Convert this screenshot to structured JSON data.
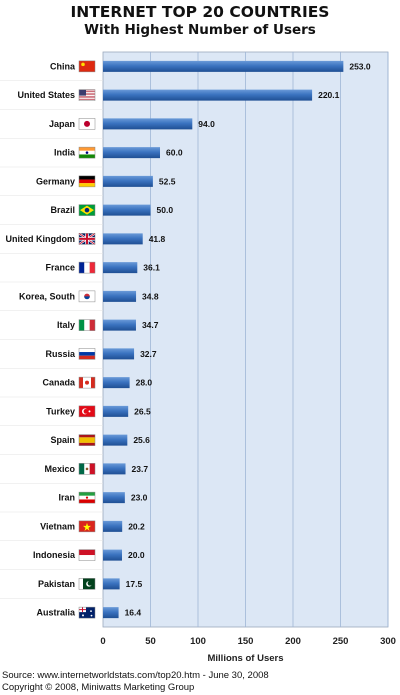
{
  "header": {
    "title": "INTERNET TOP 20 COUNTRIES",
    "subtitle": "With Highest Number of Users"
  },
  "footer": {
    "source": "Source: www.internetworldstats.com/top20.htm - June 30, 2008",
    "copyright": "Copyright © 2008, Miniwatts Marketing Group"
  },
  "chart_data": {
    "type": "bar",
    "orientation": "horizontal",
    "title": "INTERNET TOP 20 COUNTRIES",
    "subtitle": "With Highest Number of Users",
    "xlabel": "Millions of Users",
    "ylabel": "",
    "xlim": [
      0,
      300
    ],
    "x_ticks": [
      0,
      50,
      100,
      150,
      200,
      250,
      300
    ],
    "grid": true,
    "legend": "none",
    "bar_color": "#3b73c0",
    "plot_background": "#dce7f5",
    "categories": [
      "China",
      "United States",
      "Japan",
      "India",
      "Germany",
      "Brazil",
      "United Kingdom",
      "France",
      "Korea, South",
      "Italy",
      "Russia",
      "Canada",
      "Turkey",
      "Spain",
      "Mexico",
      "Iran",
      "Vietnam",
      "Indonesia",
      "Pakistan",
      "Australia"
    ],
    "values": [
      253.0,
      220.1,
      94.0,
      60.0,
      52.5,
      50.0,
      41.8,
      36.1,
      34.8,
      34.7,
      32.7,
      28.0,
      26.5,
      25.6,
      23.7,
      23.0,
      20.2,
      20.0,
      17.5,
      16.4
    ],
    "value_labels": [
      "253.0",
      "220.1",
      "94.0",
      "60.0",
      "52.5",
      "50.0",
      "41.8",
      "36.1",
      "34.8",
      "34.7",
      "32.7",
      "28.0",
      "26.5",
      "25.6",
      "23.7",
      "23.0",
      "20.2",
      "20.0",
      "17.5",
      "16.4"
    ],
    "flag_icons": [
      "china-flag-icon",
      "united-states-flag-icon",
      "japan-flag-icon",
      "india-flag-icon",
      "germany-flag-icon",
      "brazil-flag-icon",
      "united-kingdom-flag-icon",
      "france-flag-icon",
      "korea-south-flag-icon",
      "italy-flag-icon",
      "russia-flag-icon",
      "canada-flag-icon",
      "turkey-flag-icon",
      "spain-flag-icon",
      "mexico-flag-icon",
      "iran-flag-icon",
      "vietnam-flag-icon",
      "indonesia-flag-icon",
      "pakistan-flag-icon",
      "australia-flag-icon"
    ]
  }
}
